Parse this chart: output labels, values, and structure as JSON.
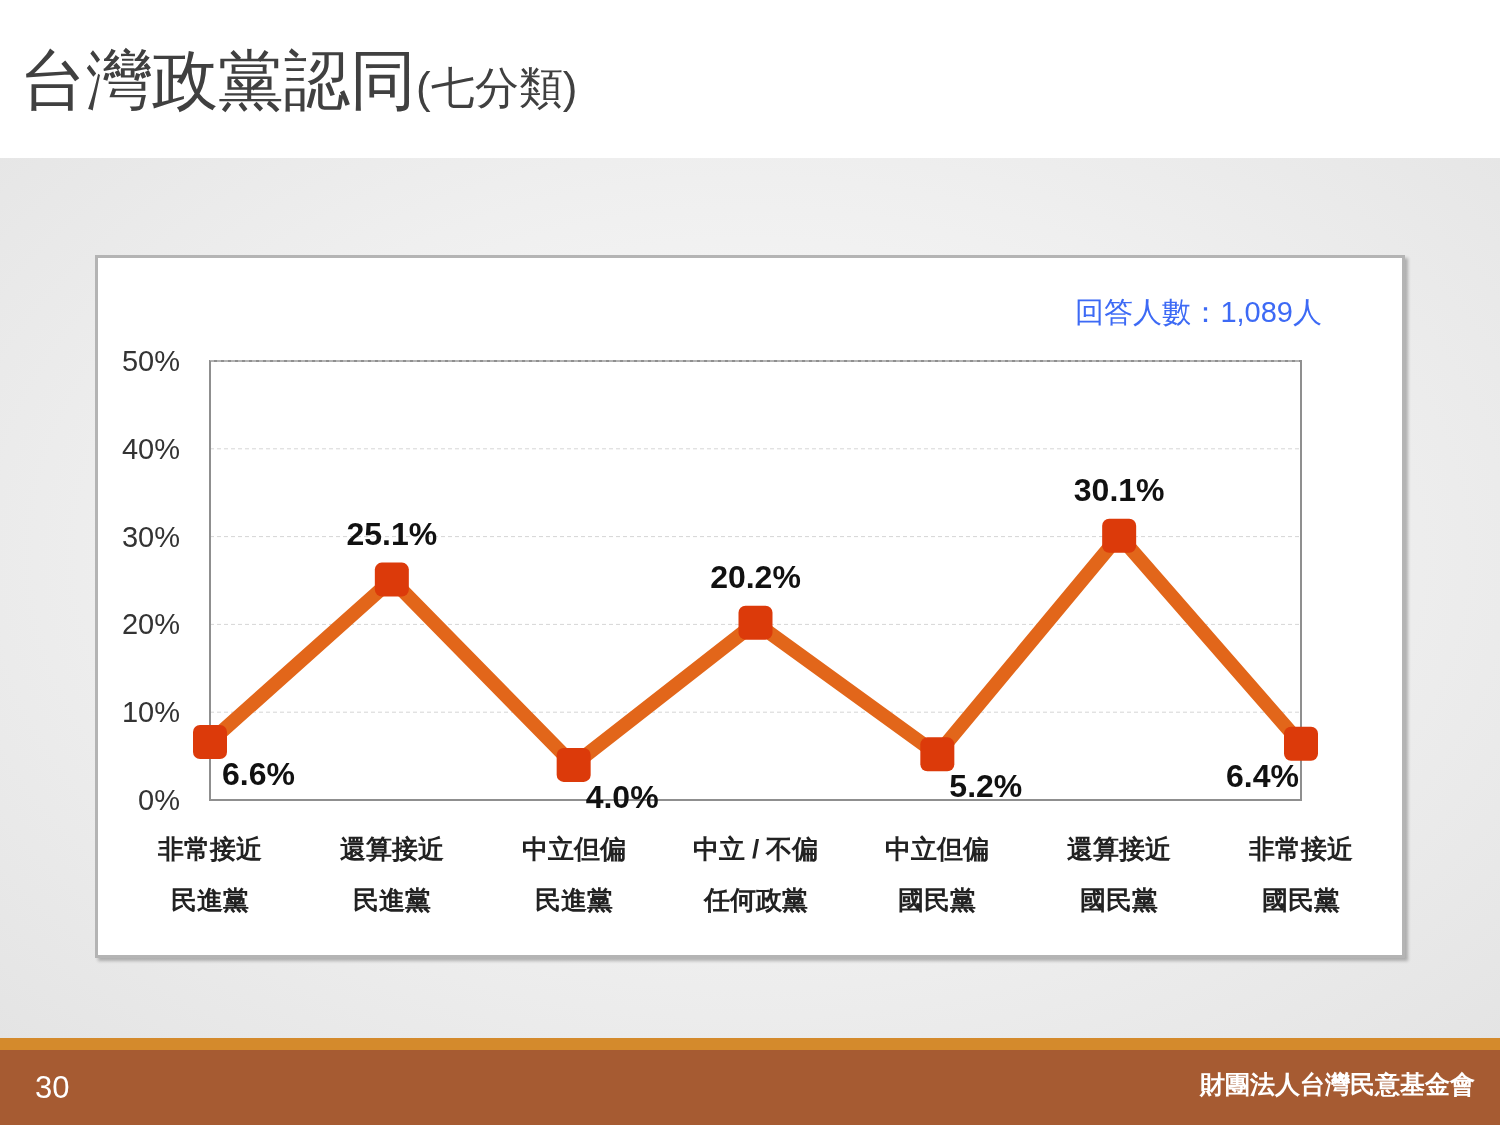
{
  "chart_data": {
    "type": "line",
    "title": "台灣政黨認同",
    "subtitle": "(七分類)",
    "categories": [
      "非常接近民進黨",
      "還算接近民進黨",
      "中立但偏民進黨",
      "中立 / 不偏任何政黨",
      "中立但偏國民黨",
      "還算接近國民黨",
      "非常接近國民黨"
    ],
    "series": [
      {
        "color": "#e2661a",
        "colors": [
          "#dc3a0a",
          "#dc3a0a",
          "#dc3a0a",
          "#dc3a0a",
          "#dc3a0a",
          "#dc3a0a",
          "#dc3a0a"
        ],
        "values": [
          6.6,
          25.1,
          4.0,
          20.2,
          5.2,
          30.1,
          6.4
        ],
        "value_labels": [
          "6.6%",
          "25.1%",
          "4.0%",
          "20.2%",
          "5.2%",
          "30.1%",
          "6.4%"
        ]
      }
    ],
    "ylim": [
      0,
      50
    ],
    "yticks": [
      {
        "value": 0,
        "label": "0%"
      },
      {
        "value": 10,
        "label": "10%"
      },
      {
        "value": 20,
        "label": "20%"
      },
      {
        "value": 30,
        "label": "30%"
      },
      {
        "value": 40,
        "label": "40%"
      },
      {
        "value": 50,
        "label": "50%"
      }
    ],
    "grid": "y",
    "marker": "square",
    "line_style": "solid",
    "annotations": [
      "回答人數：1,089人",
      "30",
      "財團法人台灣民意基金會"
    ]
  }
}
